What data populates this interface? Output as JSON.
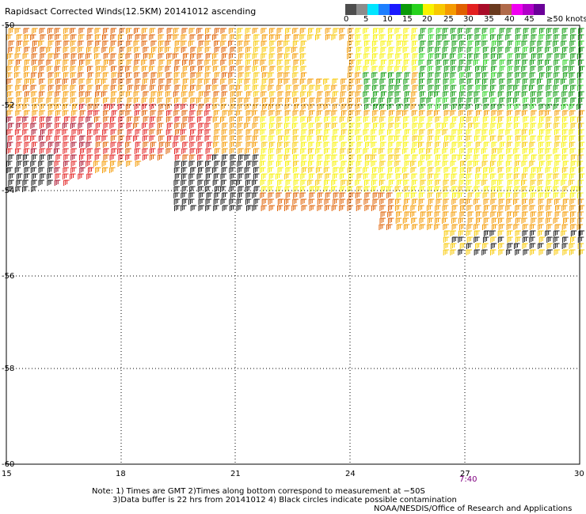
{
  "title": "Rapidsact Corrected Winds(12.5KM) 20141012 ascending",
  "scale": {
    "colors": [
      "#4d4d4d",
      "#8c8c8c",
      "#00e5ff",
      "#1e7fff",
      "#1a1aff",
      "#0a9a0a",
      "#27d21e",
      "#f8f200",
      "#f8c800",
      "#f59a00",
      "#e06000",
      "#e32020",
      "#a80c28",
      "#6a3a1e",
      "#b06a4a",
      "#f000f0",
      "#b000c8",
      "#6a0098"
    ],
    "labels": [
      "0",
      "5",
      "10",
      "15",
      "20",
      "25",
      "30",
      "35",
      "40",
      "45",
      "≥50 knots"
    ]
  },
  "map": {
    "lat_labels": [
      "-50",
      "-52",
      "-54",
      "-56",
      "-58",
      "-60"
    ],
    "lon_labels": [
      "15",
      "18",
      "21",
      "24",
      "27",
      "30"
    ],
    "time_label": "7:40",
    "time_color": "#800080"
  },
  "notes": [
    "Note: 1) Times are GMT 2)Times along bottom correspond to measurement at −50S",
    "3)Data buffer is 22 hrs from 20141012 4) Black circles indicate possible contamination"
  ],
  "credit": "NOAA/NESDIS/Office of Research and Applications"
}
